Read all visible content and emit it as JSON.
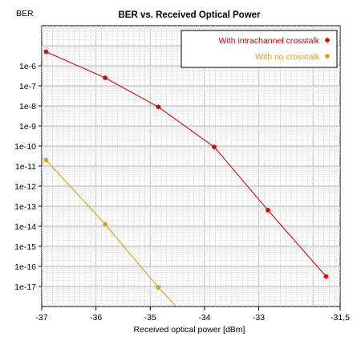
{
  "chart_data": {
    "type": "line",
    "title": "BER vs. Received Optical Power",
    "ylabel": "BER",
    "xlabel": "Received optical power [dBm]",
    "xlim": [
      -37,
      -31.5
    ],
    "ylim": [
      1e-18,
      0.0001
    ],
    "y_scale": "log",
    "grid": true,
    "legend_position": "top-right",
    "x_ticks": [
      {
        "v": -37,
        "t": "-37"
      },
      {
        "v": -36,
        "t": "-36"
      },
      {
        "v": -35,
        "t": "-35"
      },
      {
        "v": -34,
        "t": "-34"
      },
      {
        "v": -33,
        "t": "-33"
      },
      {
        "v": -31.5,
        "t": "-31,5"
      }
    ],
    "y_ticks": [
      {
        "v": -6,
        "t": "1e-6"
      },
      {
        "v": -7,
        "t": "1e-7"
      },
      {
        "v": -8,
        "t": "1e-8"
      },
      {
        "v": -9,
        "t": "1e-9"
      },
      {
        "v": -10,
        "t": "1e-10"
      },
      {
        "v": -11,
        "t": "1e-11"
      },
      {
        "v": -12,
        "t": "1e-12"
      },
      {
        "v": -13,
        "t": "1e-13"
      },
      {
        "v": -14,
        "t": "1e-14"
      },
      {
        "v": -15,
        "t": "1e-15"
      },
      {
        "v": -16,
        "t": "1e-16"
      },
      {
        "v": -17,
        "t": "1e-17"
      }
    ],
    "series": [
      {
        "name": "With intrachannel crosstalk",
        "color": "#cc0000",
        "x": [
          -36.92,
          -35.83,
          -34.85,
          -33.82,
          -32.83,
          -31.76
        ],
        "y": [
          -5.3,
          -6.6,
          -8.05,
          -10.05,
          -13.2,
          -16.5
        ]
      },
      {
        "name": "With no crosstalk",
        "color": "#d4a010",
        "x": [
          -36.92,
          -35.83,
          -34.85,
          -34.52
        ],
        "y": [
          -10.7,
          -13.9,
          -17.05,
          -18.0
        ],
        "markers": [
          true,
          true,
          true,
          false
        ]
      }
    ]
  }
}
